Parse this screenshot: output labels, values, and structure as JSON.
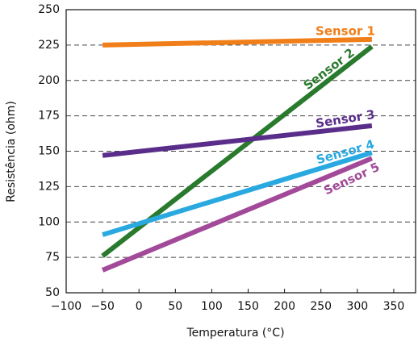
{
  "chart_data": {
    "type": "line",
    "x_label": "Temperatura (°C)",
    "y_label": "Resistência (ohm)",
    "xlim": [
      -100,
      380
    ],
    "ylim": [
      50,
      250
    ],
    "xticks": [
      {
        "value": -100,
        "label": "−100"
      },
      {
        "value": -50,
        "label": "−50"
      },
      0,
      50,
      100,
      150,
      200,
      250,
      300,
      350
    ],
    "yticks": [
      50,
      75,
      100,
      125,
      150,
      175,
      200,
      225,
      250
    ],
    "grid": "y-dashed",
    "x": [
      -50,
      320
    ],
    "series": [
      {
        "name": "Sensor 1",
        "color": "#f07f1a",
        "values": [
          225,
          229
        ]
      },
      {
        "name": "Sensor 2",
        "color": "#2a7a2e",
        "values": [
          76,
          224
        ]
      },
      {
        "name": "Sensor 3",
        "color": "#5a2d8a",
        "values": [
          147,
          168
        ]
      },
      {
        "name": "Sensor 4",
        "color": "#29a9e0",
        "values": [
          91,
          149
        ]
      },
      {
        "name": "Sensor 5",
        "color": "#a24a99",
        "values": [
          66,
          145
        ]
      }
    ]
  }
}
